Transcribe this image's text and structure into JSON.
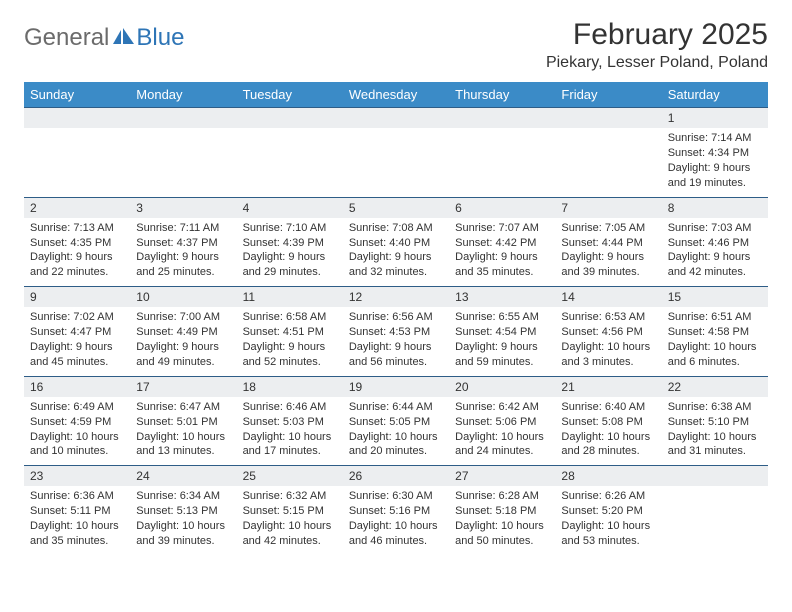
{
  "brand": {
    "part1": "General",
    "part2": "Blue"
  },
  "title": {
    "month": "February 2025",
    "location": "Piekary, Lesser Poland, Poland"
  },
  "colors": {
    "header_bg": "#3b8bc7",
    "header_text": "#ffffff",
    "border": "#2e5d87",
    "daynum_bg": "#eceef0",
    "text": "#333333",
    "brand_gray": "#6b6b6b",
    "brand_blue": "#2e75b6"
  },
  "weekdays": [
    "Sunday",
    "Monday",
    "Tuesday",
    "Wednesday",
    "Thursday",
    "Friday",
    "Saturday"
  ],
  "layout": {
    "columns": 7,
    "rows": 5,
    "first_day_column_index": 6
  },
  "days": [
    {
      "n": 1,
      "sunrise": "7:14 AM",
      "sunset": "4:34 PM",
      "daylight": "9 hours and 19 minutes."
    },
    {
      "n": 2,
      "sunrise": "7:13 AM",
      "sunset": "4:35 PM",
      "daylight": "9 hours and 22 minutes."
    },
    {
      "n": 3,
      "sunrise": "7:11 AM",
      "sunset": "4:37 PM",
      "daylight": "9 hours and 25 minutes."
    },
    {
      "n": 4,
      "sunrise": "7:10 AM",
      "sunset": "4:39 PM",
      "daylight": "9 hours and 29 minutes."
    },
    {
      "n": 5,
      "sunrise": "7:08 AM",
      "sunset": "4:40 PM",
      "daylight": "9 hours and 32 minutes."
    },
    {
      "n": 6,
      "sunrise": "7:07 AM",
      "sunset": "4:42 PM",
      "daylight": "9 hours and 35 minutes."
    },
    {
      "n": 7,
      "sunrise": "7:05 AM",
      "sunset": "4:44 PM",
      "daylight": "9 hours and 39 minutes."
    },
    {
      "n": 8,
      "sunrise": "7:03 AM",
      "sunset": "4:46 PM",
      "daylight": "9 hours and 42 minutes."
    },
    {
      "n": 9,
      "sunrise": "7:02 AM",
      "sunset": "4:47 PM",
      "daylight": "9 hours and 45 minutes."
    },
    {
      "n": 10,
      "sunrise": "7:00 AM",
      "sunset": "4:49 PM",
      "daylight": "9 hours and 49 minutes."
    },
    {
      "n": 11,
      "sunrise": "6:58 AM",
      "sunset": "4:51 PM",
      "daylight": "9 hours and 52 minutes."
    },
    {
      "n": 12,
      "sunrise": "6:56 AM",
      "sunset": "4:53 PM",
      "daylight": "9 hours and 56 minutes."
    },
    {
      "n": 13,
      "sunrise": "6:55 AM",
      "sunset": "4:54 PM",
      "daylight": "9 hours and 59 minutes."
    },
    {
      "n": 14,
      "sunrise": "6:53 AM",
      "sunset": "4:56 PM",
      "daylight": "10 hours and 3 minutes."
    },
    {
      "n": 15,
      "sunrise": "6:51 AM",
      "sunset": "4:58 PM",
      "daylight": "10 hours and 6 minutes."
    },
    {
      "n": 16,
      "sunrise": "6:49 AM",
      "sunset": "4:59 PM",
      "daylight": "10 hours and 10 minutes."
    },
    {
      "n": 17,
      "sunrise": "6:47 AM",
      "sunset": "5:01 PM",
      "daylight": "10 hours and 13 minutes."
    },
    {
      "n": 18,
      "sunrise": "6:46 AM",
      "sunset": "5:03 PM",
      "daylight": "10 hours and 17 minutes."
    },
    {
      "n": 19,
      "sunrise": "6:44 AM",
      "sunset": "5:05 PM",
      "daylight": "10 hours and 20 minutes."
    },
    {
      "n": 20,
      "sunrise": "6:42 AM",
      "sunset": "5:06 PM",
      "daylight": "10 hours and 24 minutes."
    },
    {
      "n": 21,
      "sunrise": "6:40 AM",
      "sunset": "5:08 PM",
      "daylight": "10 hours and 28 minutes."
    },
    {
      "n": 22,
      "sunrise": "6:38 AM",
      "sunset": "5:10 PM",
      "daylight": "10 hours and 31 minutes."
    },
    {
      "n": 23,
      "sunrise": "6:36 AM",
      "sunset": "5:11 PM",
      "daylight": "10 hours and 35 minutes."
    },
    {
      "n": 24,
      "sunrise": "6:34 AM",
      "sunset": "5:13 PM",
      "daylight": "10 hours and 39 minutes."
    },
    {
      "n": 25,
      "sunrise": "6:32 AM",
      "sunset": "5:15 PM",
      "daylight": "10 hours and 42 minutes."
    },
    {
      "n": 26,
      "sunrise": "6:30 AM",
      "sunset": "5:16 PM",
      "daylight": "10 hours and 46 minutes."
    },
    {
      "n": 27,
      "sunrise": "6:28 AM",
      "sunset": "5:18 PM",
      "daylight": "10 hours and 50 minutes."
    },
    {
      "n": 28,
      "sunrise": "6:26 AM",
      "sunset": "5:20 PM",
      "daylight": "10 hours and 53 minutes."
    }
  ],
  "labels": {
    "sunrise": "Sunrise:",
    "sunset": "Sunset:",
    "daylight": "Daylight:"
  }
}
